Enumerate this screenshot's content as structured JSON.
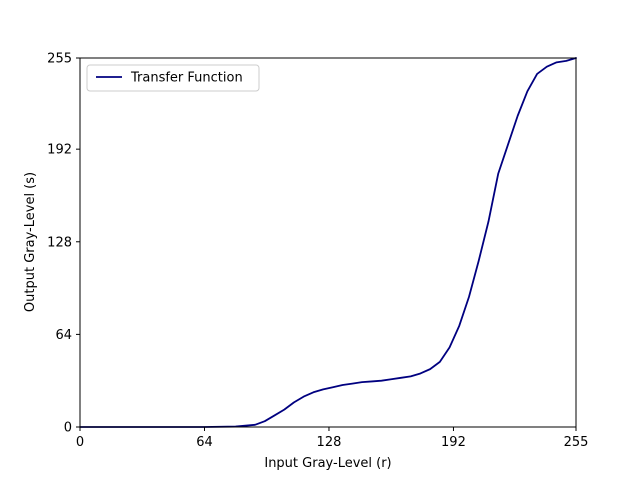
{
  "chart_data": {
    "type": "line",
    "xlabel": "Input Gray-Level (r)",
    "ylabel": "Output Gray-Level (s)",
    "xlim": [
      0,
      255
    ],
    "ylim": [
      0,
      255
    ],
    "xticks": [
      "0",
      "64",
      "128",
      "192",
      "255"
    ],
    "yticks": [
      "0",
      "64",
      "128",
      "192",
      "255"
    ],
    "grid": false,
    "legend_position": "top-left",
    "series": [
      {
        "name": "Transfer Function",
        "color": "#000080",
        "x": [
          0,
          32,
          64,
          80,
          90,
          95,
          100,
          105,
          110,
          115,
          120,
          125,
          130,
          135,
          140,
          145,
          150,
          155,
          160,
          165,
          170,
          175,
          180,
          185,
          190,
          195,
          200,
          205,
          210,
          215,
          220,
          225,
          230,
          235,
          240,
          245,
          250,
          255
        ],
        "y": [
          0,
          0,
          0,
          0.3,
          1.5,
          4,
          8,
          12,
          17,
          21,
          24,
          26,
          27.5,
          29,
          30,
          31,
          31.5,
          32,
          33,
          34,
          35,
          37,
          40,
          45,
          55,
          70,
          90,
          115,
          142,
          175,
          195,
          215,
          232,
          244,
          249,
          252,
          253,
          255
        ]
      }
    ]
  }
}
